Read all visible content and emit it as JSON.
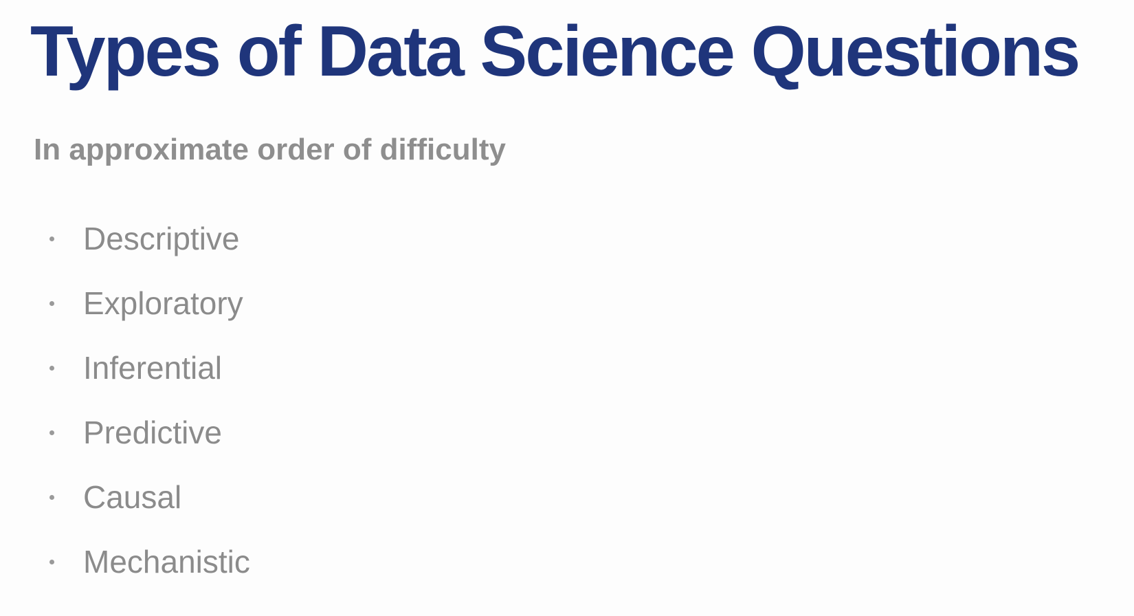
{
  "slide": {
    "title": "Types of Data Science Questions",
    "subtitle": "In approximate order of difficulty",
    "items": [
      "Descriptive",
      "Exploratory",
      "Inferential",
      "Predictive",
      "Causal",
      "Mechanistic"
    ]
  },
  "colors": {
    "title": "#1f357b",
    "subtitle": "#8e8e8e",
    "bullet_text": "#8b8b8b",
    "background": "#fdfdfd"
  }
}
